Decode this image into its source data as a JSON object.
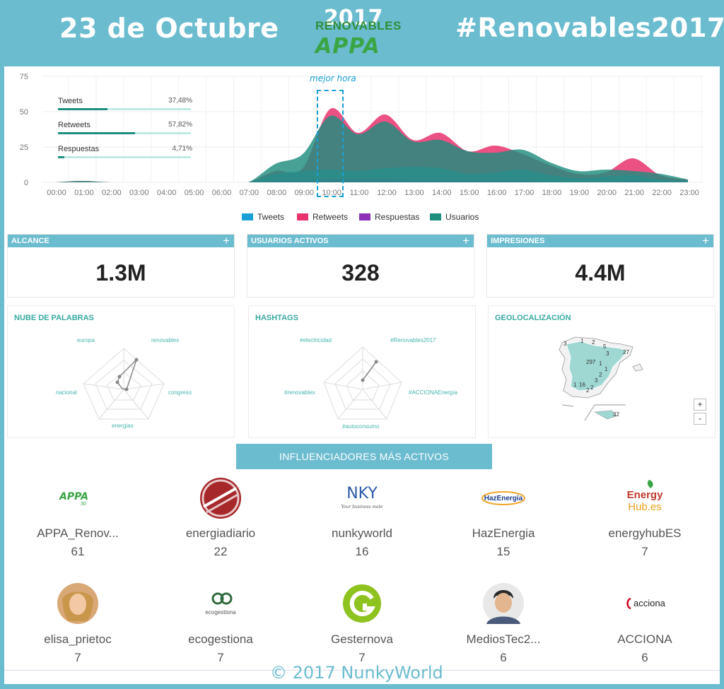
{
  "header": {
    "date": "23 de Octubre",
    "hashtag": "#Renovables2017",
    "logo_year": "2017",
    "logo_word": "RENOVABLES",
    "logo_brand": "APPA"
  },
  "stats": [
    {
      "label": "Tweets",
      "percent_text": "37,48%",
      "fraction": 0.3748
    },
    {
      "label": "Retweets",
      "percent_text": "57,82%",
      "fraction": 0.5782
    },
    {
      "label": "Respuestas",
      "percent_text": "4,71%",
      "fraction": 0.0471
    }
  ],
  "best_hour_label": "mejor hora",
  "chart_data": {
    "type": "area",
    "x": [
      "00:00",
      "01:00",
      "02:00",
      "03:00",
      "04:00",
      "05:00",
      "06:00",
      "07:00",
      "08:00",
      "09:00",
      "10:00",
      "11:00",
      "12:00",
      "13:00",
      "14:00",
      "15:00",
      "16:00",
      "17:00",
      "18:00",
      "19:00",
      "20:00",
      "21:00",
      "22:00",
      "23:00"
    ],
    "y_ticks": [
      0,
      25,
      50,
      75
    ],
    "ylim": [
      0,
      75
    ],
    "series": [
      {
        "name": "Retweets",
        "color": "#e8336d",
        "values": [
          0,
          1,
          0,
          0,
          0,
          0,
          0,
          0,
          8,
          10,
          52,
          35,
          48,
          30,
          35,
          22,
          26,
          20,
          12,
          6,
          7,
          17,
          5,
          2
        ]
      },
      {
        "name": "Tweets",
        "color": "#1aa0d8",
        "values": [
          0,
          0,
          0,
          0,
          0,
          0,
          0,
          0,
          6,
          8,
          9,
          8,
          10,
          11,
          10,
          6,
          7,
          9,
          5,
          3,
          4,
          5,
          2,
          1
        ]
      },
      {
        "name": "Respuestas",
        "color": "#8e2fb5",
        "values": [
          0,
          0,
          0,
          0,
          0,
          0,
          0,
          0,
          1,
          1,
          2,
          2,
          2,
          1,
          1,
          1,
          1,
          1,
          0,
          0,
          0,
          1,
          0,
          0
        ]
      },
      {
        "name": "Usuarios",
        "color": "#1e8e7e",
        "values": [
          0,
          1,
          0,
          0,
          0,
          0,
          0,
          0,
          13,
          20,
          47,
          34,
          43,
          29,
          30,
          22,
          21,
          23,
          14,
          8,
          9,
          8,
          6,
          2
        ]
      }
    ],
    "legend": [
      "Tweets",
      "Retweets",
      "Respuestas",
      "Usuarios"
    ]
  },
  "kpis": [
    {
      "title": "ALCANCE",
      "value": "1.3M",
      "plus": "+"
    },
    {
      "title": "USUARIOS ACTIVOS",
      "value": "328",
      "plus": "+"
    },
    {
      "title": "IMPRESIONES",
      "value": "4.4M",
      "plus": "+"
    }
  ],
  "cards": {
    "words": {
      "title": "NUBE DE PALABRAS",
      "labels": [
        "renovables",
        "congreso",
        "energias",
        "nacional",
        "europa"
      ]
    },
    "hashtags": {
      "title": "HASHTAGS",
      "labels": [
        "#Renovables2017",
        "#ACCIONAEnergía",
        "#autoconsumo",
        "#renovables",
        "#electricidad"
      ]
    },
    "geo": {
      "title": "GEOLOCALIZACIÓN",
      "numbers": [
        "3",
        "1",
        "2",
        "5",
        "3",
        "27",
        "297",
        "1",
        "1",
        "2",
        "1",
        "16",
        "3",
        "2",
        "2",
        "32"
      ],
      "zoom_in": "+",
      "zoom_out": "-"
    }
  },
  "influencers_title": "INFLUENCIADORES MÁS ACTIVOS",
  "influencers": [
    {
      "name": "APPA_Renov...",
      "count": "61"
    },
    {
      "name": "energiadiario",
      "count": "22"
    },
    {
      "name": "nunkyworld",
      "count": "16"
    },
    {
      "name": "HazEnergia",
      "count": "15"
    },
    {
      "name": "energyhubES",
      "count": "7"
    },
    {
      "name": "elisa_prietoc",
      "count": "7"
    },
    {
      "name": "ecogestiona",
      "count": "7"
    },
    {
      "name": "Gesternova",
      "count": "7"
    },
    {
      "name": "MediosTec2...",
      "count": "6"
    },
    {
      "name": "ACCIONA",
      "count": "6"
    }
  ],
  "logo_texts": {
    "appa": "APPA",
    "appa_sub": "30",
    "nky": "NKY",
    "nky_sub": "Your business mate",
    "haz": "HazEnergía",
    "energy": "Energy",
    "hub": "Hub.es",
    "ecogestiona": "ecogestiona",
    "acciona": "acciona"
  },
  "footer": "© 2017 NunkyWorld"
}
